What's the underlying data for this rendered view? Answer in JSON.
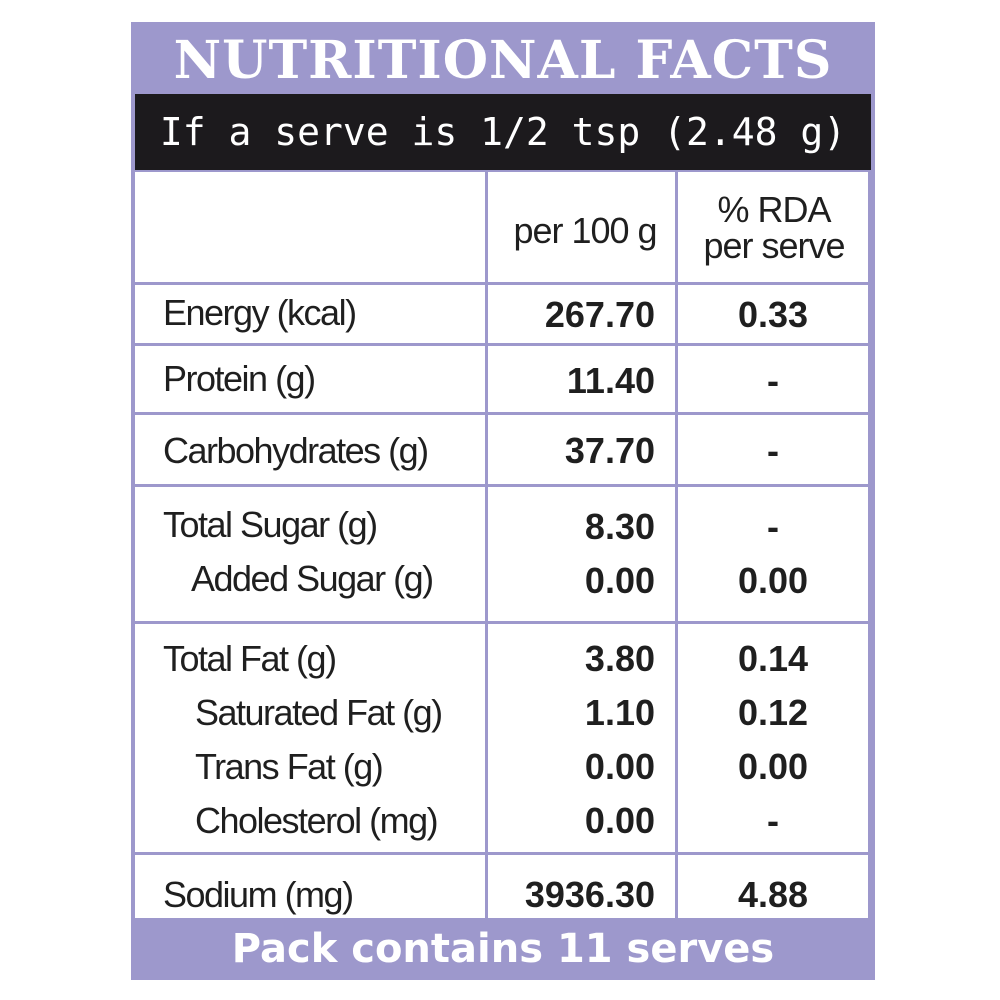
{
  "title": "NUTRITIONAL FACTS",
  "subtitle": "If a serve is 1/2 tsp (2.48 g)",
  "columns": {
    "per100": "per 100 g",
    "rda_line1": "% RDA",
    "rda_line2": "per serve"
  },
  "rows": [
    {
      "label": "Energy (kcal)",
      "per100": "267.70",
      "rda": "0.33"
    },
    {
      "label": "Protein (g)",
      "per100": "11.40",
      "rda": "-"
    },
    {
      "label": "Carbohydrates (g)",
      "per100": "37.70",
      "rda": "-"
    },
    {
      "label": "Total Sugar (g)",
      "per100": "8.30",
      "rda": "-"
    },
    {
      "label": "Added Sugar (g)",
      "per100": "0.00",
      "rda": "0.00"
    },
    {
      "label": "Total Fat (g)",
      "per100": "3.80",
      "rda": "0.14"
    },
    {
      "label": "Saturated Fat (g)",
      "per100": "1.10",
      "rda": "0.12"
    },
    {
      "label": "Trans Fat (g)",
      "per100": "0.00",
      "rda": "0.00"
    },
    {
      "label": "Cholesterol (mg)",
      "per100": "0.00",
      "rda": "-"
    },
    {
      "label": "Sodium (mg)",
      "per100": "3936.30",
      "rda": "4.88"
    }
  ],
  "footer": "Pack contains 11 serves",
  "colors": {
    "frame": "#9d98cc",
    "subtitle_bg": "#1c1a1d"
  }
}
